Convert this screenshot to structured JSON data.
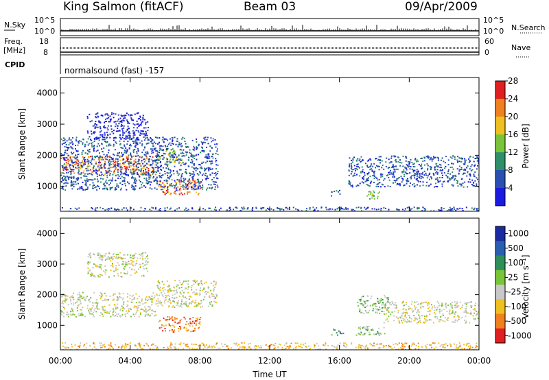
{
  "header": {
    "station": "King Salmon (fitACF)",
    "beam": "Beam 03",
    "date": "09/Apr/2009"
  },
  "panels": {
    "noise": {
      "left_label": "N.Sky",
      "right_label": "N.Search",
      "left_ticks": [
        "10^5",
        "10^0"
      ],
      "right_ticks": [
        "10^5",
        "10^0"
      ]
    },
    "freq": {
      "left_label": "Freq.",
      "left_unit": "[MHz]",
      "right_label": "Nave",
      "left_ticks": [
        "18",
        "8"
      ],
      "right_ticks": [
        "60",
        "0"
      ]
    },
    "cpid": {
      "label": "CPID",
      "program": "normalsound (fast) -157"
    }
  },
  "chart_data": [
    {
      "type": "heatmap",
      "name": "power",
      "ylabel": "Slant Range [km]",
      "yticks": [
        1000,
        2000,
        3000,
        4000
      ],
      "ylim": [
        200,
        4500
      ],
      "xticks": [
        "00:00",
        "04:00",
        "08:00",
        "12:00",
        "16:00",
        "20:00",
        "00:00"
      ],
      "xlim_hours": [
        0,
        24
      ],
      "colorbar": {
        "label": "Power [dB]",
        "ticks": [
          "4",
          "8",
          "12",
          "16",
          "20",
          "24",
          "28"
        ],
        "colors": [
          "#1a1ae0",
          "#2a4fb0",
          "#2f8f6a",
          "#7ac43a",
          "#f0c020",
          "#f08020",
          "#e02020"
        ]
      },
      "regions": [
        {
          "t0": 0.0,
          "t1": 5.5,
          "r0": 1400,
          "r1": 2000,
          "level": 5
        },
        {
          "t0": 5.5,
          "t1": 7.0,
          "r0": 1700,
          "r1": 2200,
          "level": 3
        },
        {
          "t0": 5.6,
          "t1": 8.0,
          "r0": 750,
          "r1": 1250,
          "level": 5
        },
        {
          "t0": 0.0,
          "t1": 9.0,
          "r0": 900,
          "r1": 2600,
          "level": 1
        },
        {
          "t0": 1.5,
          "t1": 5.0,
          "r0": 2500,
          "r1": 3400,
          "level": 0
        },
        {
          "t0": 16.5,
          "t1": 24.0,
          "r0": 1000,
          "r1": 2000,
          "level": 1
        },
        {
          "t0": 17.5,
          "t1": 18.3,
          "r0": 600,
          "r1": 900,
          "level": 3
        },
        {
          "t0": 15.5,
          "t1": 16.0,
          "r0": 700,
          "r1": 900,
          "level": 1
        },
        {
          "t0": 0.0,
          "t1": 24.0,
          "r0": 200,
          "r1": 350,
          "level": 1
        }
      ]
    },
    {
      "type": "heatmap",
      "name": "velocity",
      "ylabel": "Slant Range [km]",
      "yticks": [
        1000,
        2000,
        3000,
        4000
      ],
      "ylim": [
        200,
        4500
      ],
      "xticks": [
        "00:00",
        "04:00",
        "08:00",
        "12:00",
        "16:00",
        "20:00",
        "00:00"
      ],
      "xlim_hours": [
        0,
        24
      ],
      "xlabel": "Time UT",
      "colorbar": {
        "label": "Velocity [m s⁻¹]",
        "ticks": [
          "1000",
          "500",
          "100",
          "25",
          "-25",
          "-100",
          "-500",
          "-1000"
        ],
        "colors": [
          "#1a2aa0",
          "#2a5fb0",
          "#2f8f5a",
          "#7ac43a",
          "#c8c8c8",
          "#f0c020",
          "#f08020",
          "#e02020"
        ]
      },
      "regions": [
        {
          "t0": 0.0,
          "t1": 5.5,
          "r0": 1300,
          "r1": 2100,
          "level": 4
        },
        {
          "t0": 5.5,
          "t1": 9.0,
          "r0": 1600,
          "r1": 2500,
          "level": 4
        },
        {
          "t0": 5.6,
          "t1": 8.0,
          "r0": 800,
          "r1": 1300,
          "level": 6
        },
        {
          "t0": 1.5,
          "t1": 5.0,
          "r0": 2600,
          "r1": 3400,
          "level": 4
        },
        {
          "t0": 16.8,
          "t1": 18.6,
          "r0": 700,
          "r1": 1000,
          "level": 3
        },
        {
          "t0": 17.0,
          "t1": 18.8,
          "r0": 1400,
          "r1": 2000,
          "level": 3
        },
        {
          "t0": 15.5,
          "t1": 16.2,
          "r0": 700,
          "r1": 900,
          "level": 2
        },
        {
          "t0": 18.5,
          "t1": 24.0,
          "r0": 1100,
          "r1": 1800,
          "level": 4
        },
        {
          "t0": 0.0,
          "t1": 24.0,
          "r0": 200,
          "r1": 450,
          "level": 5
        }
      ]
    }
  ]
}
